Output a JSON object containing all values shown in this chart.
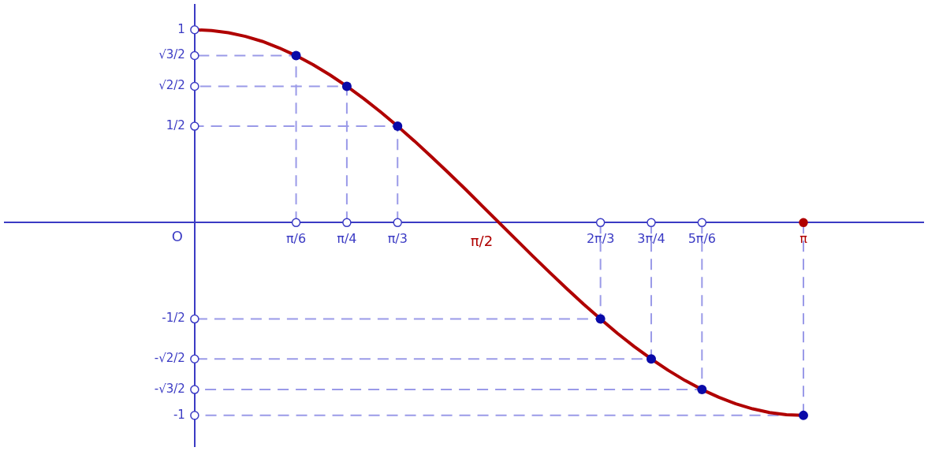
{
  "chart_data": {
    "type": "line",
    "xlim": [
      -0.98,
      3.76
    ],
    "ylim": [
      -1.16,
      1.13
    ],
    "xticks": [
      {
        "value": 0.5236,
        "label": "π/6"
      },
      {
        "value": 0.7854,
        "label": "π/4"
      },
      {
        "value": 1.0472,
        "label": "π/3"
      },
      {
        "value": 2.0944,
        "label": "2π/3"
      },
      {
        "value": 2.3562,
        "label": "3π/4"
      },
      {
        "value": 2.618,
        "label": "5π/6"
      },
      {
        "value": 3.1416,
        "label": "π"
      }
    ],
    "yticks": [
      1,
      {
        "value": 0.866,
        "label": "√3/2"
      },
      {
        "value": 0.707,
        "label": "√2/2"
      },
      {
        "value": 0.5,
        "label": "1/2"
      },
      {
        "value": -0.5,
        "label": "-1/2"
      },
      {
        "value": -0.707,
        "label": "-√2/2"
      },
      {
        "value": -0.866,
        "label": "-√3/2"
      },
      -1
    ],
    "grid": false,
    "legend": false,
    "series": [
      {
        "color": "#b00000",
        "marker": "none",
        "x": [
          0,
          0.0873,
          0.1745,
          0.2618,
          0.3491,
          0.4363,
          0.5236,
          0.6109,
          0.6981,
          0.7854,
          0.8727,
          0.9599,
          1.0472,
          1.1345,
          1.2217,
          1.309,
          1.3963,
          1.4835,
          1.5708,
          1.6581,
          1.7453,
          1.8326,
          1.9199,
          2.0071,
          2.0944,
          2.1817,
          2.2689,
          2.3562,
          2.4435,
          2.5307,
          2.618,
          2.7053,
          2.7925,
          2.8798,
          2.9671,
          3.0543,
          3.1416
        ],
        "values": [
          1,
          0.996,
          0.985,
          0.966,
          0.94,
          0.906,
          0.866,
          0.819,
          0.766,
          0.707,
          0.643,
          0.574,
          0.5,
          0.423,
          0.342,
          0.259,
          0.174,
          0.087,
          0,
          -0.087,
          -0.174,
          -0.259,
          -0.342,
          -0.423,
          -0.5,
          -0.574,
          -0.643,
          -0.707,
          -0.766,
          -0.819,
          -0.866,
          -0.906,
          -0.94,
          -0.966,
          -0.985,
          -0.996,
          -1
        ]
      },
      {
        "type": "scatter",
        "color": "#0a0aa8",
        "marker": "circle",
        "x": [
          0.5236,
          0.7854,
          1.0472,
          2.0944,
          2.3562,
          2.618,
          3.1416
        ],
        "values": [
          0.866,
          0.707,
          0.5,
          -0.5,
          -0.707,
          -0.866,
          -1
        ]
      }
    ],
    "annotations": [
      "O",
      {
        "text": "π/2",
        "x": 1.5708,
        "y": 0
      }
    ]
  }
}
